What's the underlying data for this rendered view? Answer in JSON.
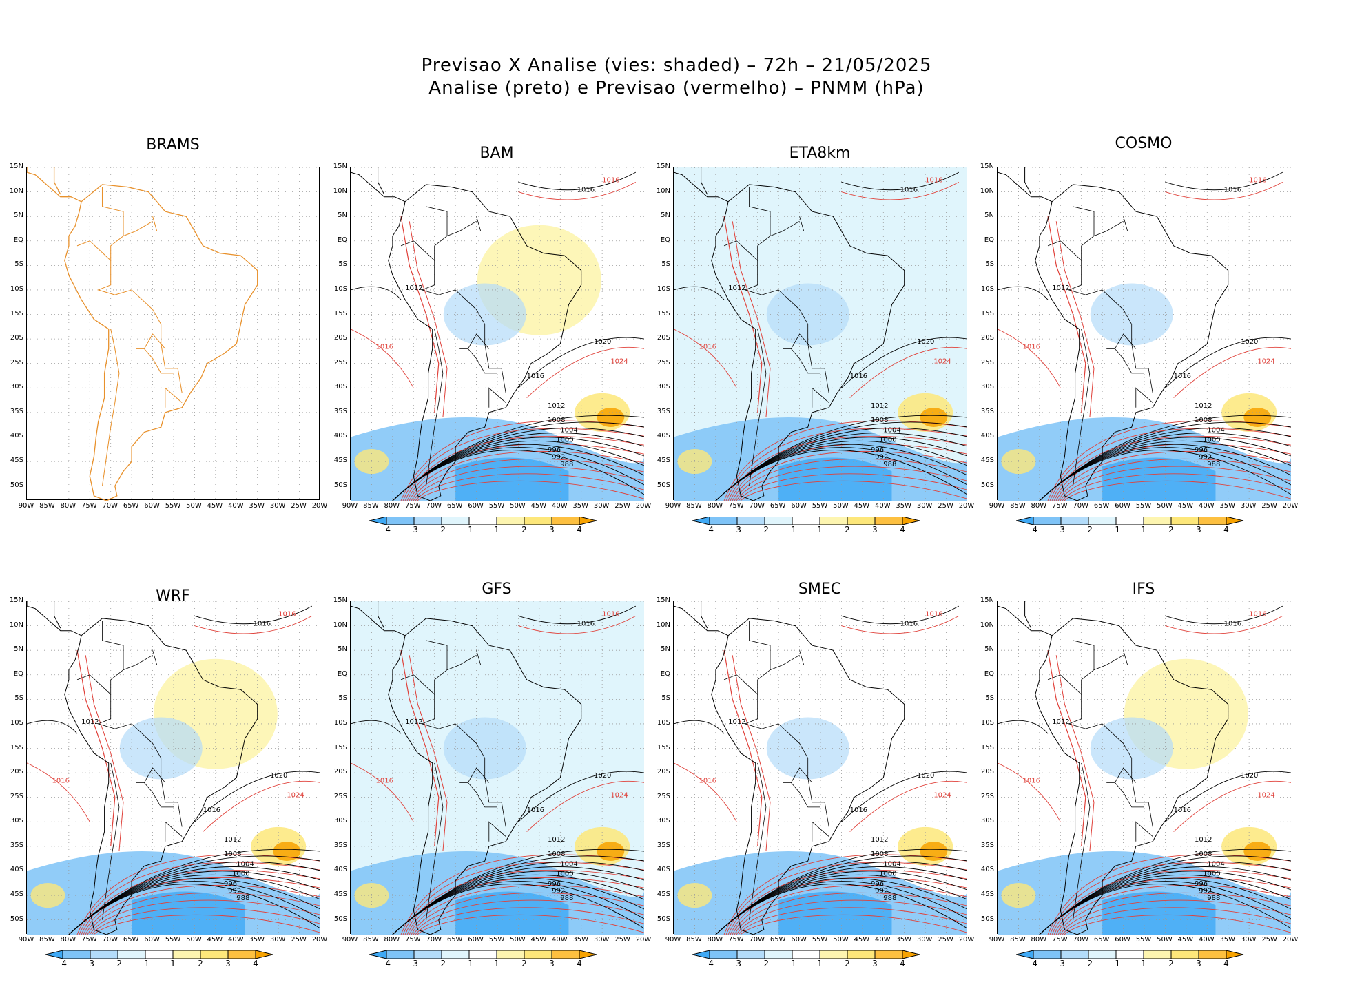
{
  "figure": {
    "title_line1": "Previsao X Analise (vies: shaded) – 72h – 21/05/2025",
    "title_line2": "Analise (preto) e Previsao (vermelho) – PNMM (hPa)"
  },
  "panels": [
    {
      "name": "BRAMS",
      "has_field": false,
      "has_colorbar": false
    },
    {
      "name": "BAM",
      "has_field": true,
      "has_colorbar": true
    },
    {
      "name": "ETA8km",
      "has_field": true,
      "has_colorbar": true
    },
    {
      "name": "COSMO",
      "has_field": true,
      "has_colorbar": true
    },
    {
      "name": "WRF",
      "has_field": true,
      "has_colorbar": true
    },
    {
      "name": "GFS",
      "has_field": true,
      "has_colorbar": true
    },
    {
      "name": "SMEC",
      "has_field": true,
      "has_colorbar": true
    },
    {
      "name": "IFS",
      "has_field": true,
      "has_colorbar": true
    }
  ],
  "axes": {
    "lat_labels": [
      "15N",
      "10N",
      "5N",
      "EQ",
      "5S",
      "10S",
      "15S",
      "20S",
      "25S",
      "30S",
      "35S",
      "40S",
      "45S",
      "50S"
    ],
    "lon_labels": [
      "90W",
      "85W",
      "80W",
      "75W",
      "70W",
      "65W",
      "60W",
      "55W",
      "50W",
      "45W",
      "40W",
      "35W",
      "30W",
      "25W",
      "20W"
    ],
    "lat_range": [
      15,
      -53
    ],
    "lon_range": [
      -90,
      -20
    ]
  },
  "colorbar": {
    "labels": [
      "-4",
      "-3",
      "-2",
      "-1",
      "1",
      "2",
      "3",
      "4"
    ],
    "colors": [
      "#3fa9f5",
      "#7ec3f7",
      "#b3dcfa",
      "#e0f5fc",
      "#ffffff",
      "#fdf5b0",
      "#fde77a",
      "#fdc040",
      "#f7a200"
    ]
  },
  "isobar_labels": [
    "1016",
    "1012",
    "1020",
    "1024",
    "1008",
    "1004",
    "1000",
    "996",
    "992",
    "988"
  ],
  "colors": {
    "coast_brams": "#e8912c",
    "analysis": "#000000",
    "forecast": "#e0413a"
  }
}
